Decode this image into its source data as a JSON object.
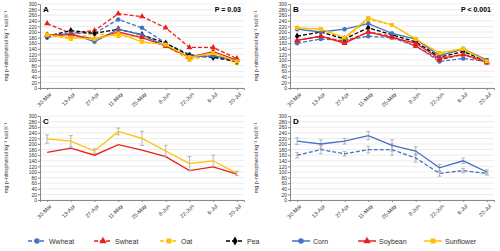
{
  "chart_data": [
    {
      "type": "line",
      "title": "A",
      "annotation": "P = 0.03",
      "y_label": "mg p-nitrophenol kg⁻¹ soil h⁻¹",
      "categories": [
        "30-Mar",
        "13-Apr",
        "27-Apr",
        "11-May",
        "25-May",
        "8-Jun",
        "22-Jun",
        "6-Jul",
        "20-Jul"
      ],
      "ylim": [
        0,
        300
      ],
      "yticks": [
        0,
        20,
        40,
        60,
        80,
        100,
        120,
        140,
        160,
        180,
        200,
        220,
        240,
        260,
        280,
        300
      ],
      "grid": true,
      "legend": "bottom",
      "series": [
        {
          "name": "Wwheat",
          "color": "#4472c4",
          "line_style": "dashed",
          "marker": "circle",
          "values": [
            180,
            195,
            195,
            245,
            215,
            160,
            120,
            110,
            95
          ]
        },
        {
          "name": "Swheat",
          "color": "#e8201c",
          "line_style": "dashed",
          "marker": "triangle",
          "values": [
            230,
            195,
            205,
            265,
            255,
            215,
            145,
            145,
            105
          ]
        },
        {
          "name": "Oat",
          "color": "#ffc000",
          "line_style": "dashed",
          "marker": "square",
          "values": [
            190,
            175,
            195,
            185,
            185,
            150,
            100,
            120,
            90
          ]
        },
        {
          "name": "Pea",
          "color": "#000000",
          "line_style": "dashed",
          "marker": "diamond",
          "values": [
            185,
            205,
            195,
            210,
            190,
            160,
            115,
            110,
            95
          ]
        },
        {
          "name": "Corn",
          "color": "#4472c4",
          "line_style": "solid",
          "marker": "circle",
          "values": [
            185,
            195,
            165,
            210,
            190,
            150,
            110,
            115,
            100
          ]
        },
        {
          "name": "Soybean",
          "color": "#e8201c",
          "line_style": "solid",
          "marker": "triangle",
          "values": [
            190,
            190,
            175,
            200,
            180,
            150,
            110,
            130,
            100
          ]
        },
        {
          "name": "Sunflower",
          "color": "#ffc000",
          "line_style": "solid",
          "marker": "square",
          "values": [
            190,
            180,
            175,
            195,
            165,
            155,
            110,
            125,
            95
          ]
        }
      ]
    },
    {
      "type": "line",
      "title": "B",
      "annotation": "P < 0.001",
      "y_label": "mg p-nitrophenol kg⁻¹ soil h⁻¹",
      "categories": [
        "30-Mar",
        "13-Apr",
        "27-Apr",
        "11-May",
        "25-May",
        "8-Jun",
        "22-Jun",
        "6-Jul",
        "20-Jul"
      ],
      "ylim": [
        0,
        300
      ],
      "yticks": [
        0,
        20,
        40,
        60,
        80,
        100,
        120,
        140,
        160,
        180,
        200,
        220,
        240,
        260,
        280,
        300
      ],
      "grid": true,
      "series": [
        {
          "name": "Wwheat",
          "color": "#4472c4",
          "line_style": "dashed",
          "marker": "circle",
          "values": [
            160,
            175,
            170,
            185,
            180,
            150,
            95,
            105,
            95
          ]
        },
        {
          "name": "Swheat",
          "color": "#e8201c",
          "line_style": "dashed",
          "marker": "triangle",
          "values": [
            170,
            185,
            165,
            200,
            185,
            150,
            100,
            120,
            90
          ]
        },
        {
          "name": "Oat",
          "color": "#ffc000",
          "line_style": "dashed",
          "marker": "square",
          "values": [
            215,
            210,
            175,
            245,
            225,
            175,
            120,
            135,
            100
          ]
        },
        {
          "name": "Pea",
          "color": "#000000",
          "line_style": "dashed",
          "marker": "diamond",
          "values": [
            185,
            200,
            175,
            215,
            190,
            165,
            110,
            130,
            95
          ]
        },
        {
          "name": "Corn",
          "color": "#4472c4",
          "line_style": "solid",
          "marker": "circle",
          "values": [
            210,
            200,
            210,
            230,
            195,
            175,
            115,
            140,
            100
          ]
        },
        {
          "name": "Soybean",
          "color": "#e8201c",
          "line_style": "solid",
          "marker": "triangle",
          "values": [
            170,
            185,
            160,
            200,
            180,
            160,
            105,
            120,
            95
          ]
        },
        {
          "name": "Sunflower",
          "color": "#ffc000",
          "line_style": "solid",
          "marker": "square",
          "values": [
            215,
            210,
            180,
            250,
            225,
            175,
            125,
            140,
            95
          ]
        }
      ]
    },
    {
      "type": "line",
      "title": "C",
      "y_label": "mg p-nitrophenol kg⁻¹ soil h⁻¹",
      "categories": [
        "30-Mar",
        "13-Apr",
        "27-Apr",
        "11-May",
        "25-May",
        "8-Jun",
        "22-Jun",
        "6-Jul",
        "20-Jul"
      ],
      "ylim": [
        0,
        300
      ],
      "yticks": [
        0,
        20,
        40,
        60,
        80,
        100,
        120,
        140,
        160,
        180,
        200,
        220,
        240,
        260,
        280,
        300
      ],
      "grid": true,
      "series": [
        {
          "name": "Soybean",
          "color": "#e8201c",
          "line_style": "solid",
          "values": [
            170,
            185,
            160,
            198,
            178,
            155,
            105,
            118,
            92
          ]
        },
        {
          "name": "Sunflower",
          "color": "#ffc000",
          "line_style": "solid",
          "values": [
            218,
            210,
            175,
            245,
            220,
            175,
            130,
            140,
            95
          ],
          "errors": [
            15,
            20,
            8,
            12,
            25,
            20,
            25,
            20,
            8
          ]
        }
      ]
    },
    {
      "type": "line",
      "title": "D",
      "y_label": "mg p-nitrophenol kg⁻¹ soil h⁻¹",
      "categories": [
        "30-Mar",
        "13-Apr",
        "27-Apr",
        "11-May",
        "25-May",
        "8-Jun",
        "22-Jun",
        "6-Jul",
        "20-Jul"
      ],
      "ylim": [
        0,
        300
      ],
      "yticks": [
        0,
        20,
        40,
        60,
        80,
        100,
        120,
        140,
        160,
        180,
        200,
        220,
        240,
        260,
        280,
        300
      ],
      "grid": true,
      "series": [
        {
          "name": "Wwheat",
          "color": "#4472c4",
          "line_style": "dashed",
          "values": [
            160,
            180,
            165,
            180,
            180,
            150,
            95,
            105,
            95
          ],
          "errors": [
            10,
            15,
            8,
            12,
            20,
            15,
            10,
            8,
            6
          ]
        },
        {
          "name": "Corn",
          "color": "#4472c4",
          "line_style": "solid",
          "values": [
            210,
            200,
            210,
            230,
            195,
            175,
            115,
            140,
            100
          ],
          "errors": [
            12,
            15,
            10,
            15,
            20,
            15,
            12,
            10,
            8
          ]
        }
      ]
    }
  ]
}
